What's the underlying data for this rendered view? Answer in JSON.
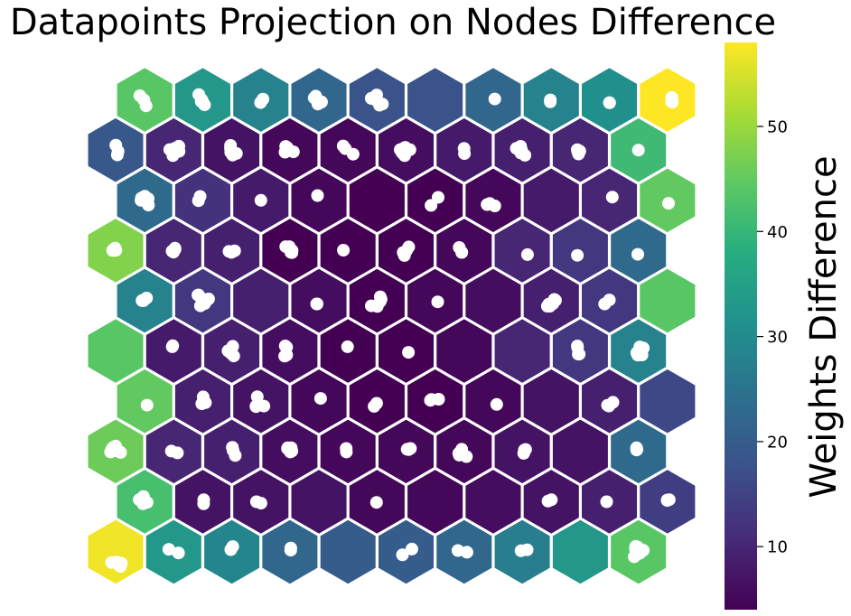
{
  "chart_data": {
    "type": "heatmap",
    "layout": "hexagonal",
    "title": "Datapoints Projection on Nodes Difference",
    "colorbar": {
      "label": "Weights Difference",
      "range": [
        4,
        58
      ],
      "ticks": [
        10,
        20,
        30,
        40,
        50
      ],
      "colormap": "viridis",
      "orientation": "vertical"
    },
    "grid": false,
    "rows": 10,
    "cols": 10,
    "cells": [
      [
        57,
        33,
        29,
        22,
        20,
        20,
        22,
        27,
        33,
        44
      ],
      [
        42,
        7,
        7,
        7,
        5,
        5,
        6,
        7,
        9,
        14
      ],
      [
        46,
        10,
        9,
        6,
        5,
        5,
        5,
        7,
        7,
        23
      ],
      [
        45,
        9,
        7,
        5,
        4,
        4,
        5,
        7,
        9,
        16
      ],
      [
        44,
        8,
        9,
        6,
        4,
        4,
        5,
        10,
        13,
        28
      ],
      [
        28,
        13,
        9,
        6,
        4,
        5,
        6,
        9,
        13,
        44
      ],
      [
        48,
        10,
        9,
        4,
        4,
        4,
        5,
        10,
        13,
        23
      ],
      [
        23,
        12,
        8,
        5,
        4,
        4,
        5,
        8,
        10,
        45
      ],
      [
        19,
        10,
        7,
        5,
        5,
        6,
        8,
        9,
        10,
        41
      ],
      [
        44,
        33,
        28,
        22,
        18,
        18,
        22,
        28,
        31,
        58
      ]
    ],
    "points": [
      [
        [
          [
            3.9,
            14.5
          ],
          [
            5.2,
            16.2
          ],
          [
            -4.5,
            11.8
          ],
          [
            1.1,
            11.3
          ],
          [
            6.3,
            12.6
          ]
        ],
        [
          [
            -5.4,
            -2.8
          ],
          [
            5.3,
            1.2
          ]
        ],
        [
          [
            1.0,
            -5.9
          ],
          [
            -1.1,
            -2.5
          ]
        ],
        [
          [
            1.0,
            -4.2
          ],
          [
            0.9,
            -1.9
          ]
        ],
        [],
        [
          [
            -4.0,
            3.3
          ],
          [
            6.4,
            -3.1
          ]
        ],
        [
          [
            -6.9,
            -1.5
          ],
          [
            3.1,
            0.4
          ]
        ],
        [
          [
            -1.4,
            -1.2
          ],
          [
            5.4,
            -2.3
          ]
        ],
        [],
        [
          [
            -1.2,
            1.0
          ],
          [
            -0.8,
            -5.1
          ],
          [
            1.5,
            1.5
          ],
          [
            -4.7,
            5.4
          ],
          [
            5.4,
            -1.7
          ],
          [
            -3.0,
            -6.1
          ],
          [
            -3.3,
            -3.3
          ]
        ]
      ],
      [
        [
          [
            -6.1,
            -2.2
          ],
          [
            -1.3,
            -5.7
          ],
          [
            2.6,
            0.8
          ],
          [
            -1.9,
            2.4
          ]
        ],
        [
          [
            1.0,
            -2.1
          ],
          [
            0.9,
            2.4
          ]
        ],
        [
          [
            -4.9,
            0.1
          ],
          [
            0.1,
            1.7
          ]
        ],
        [],
        [
          [
            -0.5,
            0.8
          ]
        ],
        [],
        [],
        [
          [
            -3.6,
            -0.6
          ],
          [
            0.1,
            -2.1
          ]
        ],
        [
          [
            -3.0,
            0.1
          ]
        ],
        [
          [
            -0.2,
            -1.3
          ],
          [
            2.0,
            -2.2
          ],
          [
            -0.2,
            -1.8
          ]
        ]
      ],
      [
        [
          [
            -3.5,
            -2.4
          ],
          [
            -2.7,
            -0.6
          ],
          [
            -4.2,
            -2.6
          ],
          [
            0.0,
            -5.9
          ],
          [
            -2.7,
            -4.4
          ],
          [
            5.0,
            0.7
          ],
          [
            5.5,
            1.1
          ],
          [
            -5.6,
            0.6
          ]
        ],
        [
          [
            -2.6,
            -0.4
          ],
          [
            4.1,
            1.6
          ]
        ],
        [
          [
            1.4,
            -1.1
          ],
          [
            0.6,
            -4.6
          ],
          [
            3.8,
            4.5
          ]
        ],
        [
          [
            0.4,
            0.6
          ],
          [
            -2.4,
            -4.0
          ],
          [
            1.4,
            -4.1
          ],
          [
            2.2,
            -0.4
          ],
          [
            -2.7,
            -3.1
          ]
        ],
        [
          [
            -2.0,
            -3.3
          ],
          [
            -1.8,
            0.6
          ]
        ],
        [
          [
            1.2,
            -2.4
          ],
          [
            2.8,
            -2.0
          ],
          [
            4.8,
            -3.3
          ]
        ],
        [
          [
            -5.4,
            4.1
          ],
          [
            2.5,
            5.7
          ],
          [
            -2.7,
            -2.4
          ],
          [
            -6.0,
            2.1
          ]
        ],
        [
          [
            2.3,
            -1.5
          ],
          [
            1.6,
            2.1
          ],
          [
            3.7,
            -2.2
          ]
        ],
        [],
        [
          [
            -1.6,
            -2.4
          ],
          [
            -2.0,
            -1.6
          ],
          [
            -2.1,
            -4.0
          ]
        ]
      ],
      [
        [
          [
            2.6,
            4.4
          ]
        ],
        [
          [
            0.4,
            -4.8
          ],
          [
            2.9,
            1.6
          ],
          [
            0.8,
            -2.0
          ],
          [
            -1.1,
            2.8
          ]
        ],
        [
          [
            -5.4,
            5.4
          ],
          [
            -5.3,
            6.0
          ],
          [
            -4.0,
            -5.0
          ],
          [
            3.3,
            5.4
          ]
        ],
        [
          [
            1.9,
            -3.1
          ]
        ],
        [
          [
            -3.2,
            5.7
          ],
          [
            -0.4,
            2.3
          ]
        ],
        [
          [
            -5.1,
            -1.0
          ],
          [
            -4.0,
            -2.0
          ],
          [
            3.9,
            -2.2
          ]
        ],
        [
          [
            3.9,
            3.6
          ]
        ],
        [],
        [
          [
            4.0,
            1.2
          ],
          [
            -0.5,
            5.3
          ],
          [
            -2.0,
            4.5
          ]
        ],
        []
      ],
      [
        [],
        [
          [
            -1.1,
            -5.8
          ],
          [
            -1.6,
            -4.7
          ]
        ],
        [
          [
            1.0,
            -5.2
          ],
          [
            -1.9,
            1.4
          ],
          [
            -4.2,
            -0.2
          ],
          [
            2.1,
            5.5
          ],
          [
            -1.4,
            2.1
          ]
        ],
        [
          [
            -5.1,
            -5.6
          ],
          [
            -3.6,
            4.4
          ],
          [
            -3.6,
            -4.2
          ],
          [
            -5.8,
            5.7
          ]
        ],
        [
          [
            -0.5,
            -4.7
          ]
        ],
        [
          [
            2.6,
            1.5
          ]
        ],
        [],
        [],
        [
          [
            -2.3,
            3.5
          ],
          [
            -3.1,
            -3.8
          ],
          [
            -3.3,
            -5.6
          ],
          [
            -1.3,
            3.5
          ]
        ],
        [
          [
            5.4,
            -3.2
          ],
          [
            3.9,
            4.4
          ],
          [
            -1.8,
            2.0
          ],
          [
            1.5,
            -4.5
          ],
          [
            -0.7,
            4.6
          ]
        ]
      ],
      [
        [
          [
            -1.8,
            -0.6
          ],
          [
            -3.0,
            -0.2
          ],
          [
            -1.6,
            0.1
          ],
          [
            2.0,
            -3.0
          ]
        ],
        [
          [
            -2.6,
            5.6
          ],
          [
            2.0,
            3.2
          ],
          [
            -1.4,
            -2.5
          ],
          [
            6.4,
            -2.0
          ],
          [
            -5.4,
            -6.3
          ],
          [
            -4.7,
            -6.4
          ]
        ],
        [],
        [
          [
            -2.0,
            3.5
          ],
          [
            -2.5,
            3.5
          ]
        ],
        [
          [
            4.6,
            -1.7
          ],
          [
            -6.3,
            5.6
          ],
          [
            3.6,
            0.8
          ],
          [
            0.3,
            6.3
          ],
          [
            3.6,
            -4.4
          ]
        ],
        [
          [
            2.9,
            1.2
          ]
        ],
        [],
        [
          [
            -4.3,
            6.0
          ],
          [
            -3.5,
            5.6
          ],
          [
            1.9,
            3.2
          ],
          [
            -1.6,
            6.0
          ],
          [
            3.4,
            -1.5
          ],
          [
            -2.6,
            4.8
          ],
          [
            -3.8,
            5.6
          ],
          [
            -2.9,
            3.8
          ],
          [
            4.7,
            -0.5
          ]
        ],
        [
          [
            -5.3,
            3.6
          ],
          [
            0.0,
            -0.9
          ]
        ],
        []
      ],
      [
        [
          [
            -3.3,
            -0.1
          ],
          [
            -2.5,
            -1.1
          ],
          [
            -0.5,
            -2.6
          ],
          [
            0.3,
            -0.3
          ]
        ],
        [
          [
            1.4,
            -2.6
          ],
          [
            -1.8,
            0.6
          ],
          [
            -0.3,
            1.8
          ],
          [
            1.4,
            -1.3
          ]
        ],
        [
          [
            -0.4,
            2.0
          ],
          [
            -3.1,
            0.9
          ],
          [
            3.1,
            0.3
          ]
        ],
        [
          [
            2.4,
            -0.1
          ],
          [
            2.2,
            2.3
          ],
          [
            1.0,
            1.9
          ],
          [
            -0.7,
            -4.3
          ],
          [
            -4.6,
            -4.3
          ]
        ],
        [
          [
            -5.1,
            -0.4
          ]
        ],
        [
          [
            -3.2,
            2.1
          ],
          [
            0.5,
            0.0
          ],
          [
            2.9,
            -4.0
          ],
          [
            -1.8,
            5.5
          ]
        ],
        [
          [
            -2.7,
            2.1
          ],
          [
            -2.6,
            1.9
          ],
          [
            -5.5,
            -3.4
          ]
        ],
        [
          [
            5.8,
            4.5
          ]
        ],
        [
          [
            -3.3,
            5.3
          ]
        ],
        [
          [
            -0.7,
            4.2
          ]
        ]
      ],
      [
        [
          [
            -4.1,
            0.0
          ],
          [
            4.1,
            5.3
          ],
          [
            -2.0,
            -3.0
          ],
          [
            -3.6,
            -2.6
          ],
          [
            3.8,
            -1.8
          ],
          [
            0.1,
            -4.6
          ]
        ],
        [
          [
            -4.8,
            0.4
          ],
          [
            -3.0,
            -4.3
          ]
        ],
        [
          [
            0.0,
            0.0
          ]
        ],
        [
          [
            -1.5,
            -5.3
          ]
        ],
        [],
        [
          [
            3.4,
            -3.3
          ],
          [
            -4.5,
            5.6
          ]
        ],
        [
          [
            1.8,
            6.2
          ],
          [
            -3.8,
            3.4
          ],
          [
            -6.7,
            4.7
          ]
        ],
        [],
        [
          [
            3.2,
            -3.6
          ]
        ],
        [
          [
            1.2,
            3.3
          ]
        ]
      ],
      [
        [
          [
            2.7,
            1.3
          ],
          [
            0.2,
            -5.5
          ],
          [
            1.9,
            5.3
          ]
        ],
        [
          [
            -4.4,
            -0.6
          ],
          [
            5.7,
            -4.3
          ],
          [
            -1.8,
            0.5
          ],
          [
            4.5,
            1.4
          ],
          [
            -0.9,
            6.1
          ],
          [
            1.7,
            -2.2
          ],
          [
            5.9,
            1.3
          ]
        ],
        [
          [
            5.1,
            3.7
          ],
          [
            0.9,
            5.5
          ],
          [
            -1.4,
            -5.2
          ],
          [
            -1.5,
            -2.1
          ],
          [
            -1.2,
            2.4
          ]
        ],
        [
          [
            -4.7,
            -4.1
          ],
          [
            -2.9,
            -2.7
          ],
          [
            -5.4,
            2.3
          ],
          [
            3.9,
            1.9
          ]
        ],
        [
          [
            -2.9,
            -1.6
          ],
          [
            5.7,
            4.5
          ],
          [
            -5.3,
            -4.6
          ]
        ],
        [
          [
            -1.0,
            -3.1
          ],
          [
            4.3,
            -0.4
          ],
          [
            -3.5,
            3.7
          ],
          [
            -1.6,
            6.1
          ],
          [
            -6.5,
            -0.5
          ],
          [
            -1.5,
            4.6
          ],
          [
            -5.0,
            -0.9
          ],
          [
            -4.1,
            1.9
          ],
          [
            -4.6,
            2.6
          ]
        ],
        [
          [
            0.3,
            3.9
          ],
          [
            -0.1,
            -1.9
          ]
        ],
        [
          [
            -6.6,
            -1.9
          ],
          [
            -1.6,
            3.2
          ],
          [
            -0.7,
            0.3
          ],
          [
            3.0,
            5.7
          ],
          [
            -1.8,
            -4.2
          ]
        ],
        [
          [
            -0.6,
            1.1
          ],
          [
            -2.9,
            1.6
          ],
          [
            -2.0,
            4.3
          ],
          [
            -3.4,
            -0.5
          ]
        ],
        [
          [
            0.0,
            0.0
          ]
        ]
      ],
      [
        [
          [
            1.5,
            6.6
          ],
          [
            -0.8,
            0.0
          ],
          [
            -5.3,
            -4.6
          ]
        ],
        [
          [
            -1.4,
            -0.4
          ],
          [
            -0.5,
            1.2
          ],
          [
            -4.4,
            -5.9
          ],
          [
            -1.8,
            1.7
          ],
          [
            1.9,
            5.5
          ]
        ],
        [
          [
            -0.4,
            3.0
          ],
          [
            2.4,
            -0.9
          ]
        ],
        [
          [
            2.9,
            2.4
          ],
          [
            2.7,
            2.2
          ],
          [
            -3.5,
            -4.2
          ],
          [
            -1.1,
            4.6
          ],
          [
            -5.2,
            -2.2
          ]
        ],
        [
          [
            2.8,
            5.9
          ],
          [
            -0.3,
            -5.5
          ],
          [
            -6.4,
            -1.7
          ],
          [
            -0.5,
            -0.9
          ],
          [
            -1.0,
            0.2
          ],
          [
            6.0,
            4.6
          ],
          [
            -3.0,
            -0.7
          ]
        ],
        [],
        [
          [
            1.8,
            -1.0
          ]
        ],
        [
          [
            -1.0,
            0.0
          ],
          [
            -1.1,
            2.2
          ]
        ],
        [
          [
            0.1,
            3.1
          ],
          [
            0.3,
            3.2
          ]
        ],
        [
          [
            5.3,
            2.6
          ],
          [
            4.8,
            -2.6
          ],
          [
            4.5,
            1.7
          ]
        ]
      ]
    ]
  }
}
